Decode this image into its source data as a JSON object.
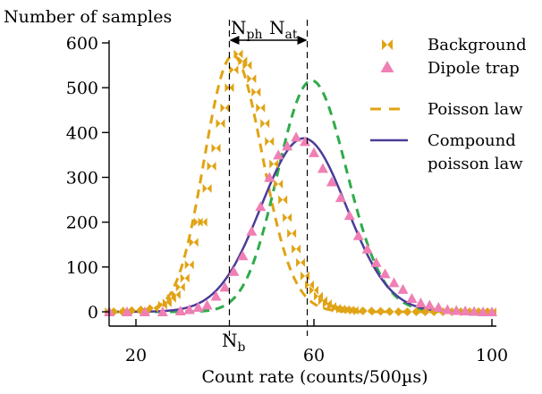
{
  "chart_data": {
    "type": "scatter",
    "ylabel": "Number of samples",
    "xlabel": "Count rate (counts/500µs)",
    "xlim": [
      13,
      101
    ],
    "ylim": [
      -15,
      620
    ],
    "x_ticks": [
      20,
      60,
      100
    ],
    "y_ticks": [
      0,
      100,
      200,
      300,
      400,
      500,
      600
    ],
    "x_tick_labels": [
      "20",
      "60",
      "100"
    ],
    "y_tick_labels": [
      "0",
      "100",
      "200",
      "300",
      "400",
      "500",
      "600"
    ],
    "annotations": {
      "n_ph": {
        "main": "N",
        "sub": "ph"
      },
      "n_at": {
        "main": "N",
        "sub": "at"
      },
      "n_b": {
        "main": "N",
        "sub": "b"
      },
      "n_b_x": 41,
      "mean_x": 58.5
    },
    "legend": {
      "position": "top-right",
      "items": [
        {
          "key": "background",
          "label": "Background",
          "marker": "bowtie",
          "color": "#e0a314"
        },
        {
          "key": "dipole",
          "label": "Dipole trap",
          "marker": "triangle",
          "color": "#ef7fb4"
        },
        {
          "key": "poisson",
          "label": "Poisson law",
          "marker": "dash",
          "color": "#e0a314"
        },
        {
          "key": "compound",
          "label_lines": [
            "Compound",
            "poisson law"
          ],
          "marker": "line",
          "color": "#4b3c98"
        }
      ]
    },
    "series": [
      {
        "name": "Background",
        "marker": "bowtie",
        "color": "#e0a314",
        "x": [
          14,
          16,
          18,
          20,
          22,
          24,
          26,
          27,
          28,
          29,
          30,
          31,
          32,
          33,
          34,
          35,
          36,
          37,
          38,
          39,
          40,
          41,
          42,
          43,
          44,
          45,
          46,
          47,
          48,
          49,
          50,
          51,
          52,
          53,
          54,
          55,
          56,
          57,
          58,
          59,
          60,
          61,
          62,
          63,
          64,
          65,
          66,
          67,
          68,
          69,
          70,
          72,
          74,
          76,
          78,
          80,
          82,
          84,
          86,
          88,
          90,
          92,
          94,
          96,
          98,
          100
        ],
        "y": [
          0,
          0,
          2,
          3,
          5,
          8,
          15,
          20,
          30,
          38,
          55,
          75,
          105,
          155,
          200,
          200,
          275,
          325,
          365,
          420,
          455,
          500,
          540,
          575,
          560,
          550,
          520,
          490,
          455,
          420,
          380,
          330,
          285,
          250,
          210,
          175,
          140,
          110,
          80,
          60,
          48,
          35,
          25,
          18,
          12,
          8,
          6,
          5,
          4,
          3,
          2,
          2,
          1,
          1,
          0,
          0,
          0,
          0,
          0,
          0,
          0,
          0,
          0,
          0,
          0,
          0
        ]
      },
      {
        "name": "Dipole trap",
        "marker": "triangle",
        "color": "#ef7fb4",
        "x": [
          14,
          18,
          22,
          26,
          30,
          32,
          34,
          36,
          38,
          40,
          42,
          44,
          46,
          48,
          50,
          52,
          54,
          56,
          58,
          60,
          62,
          64,
          66,
          68,
          70,
          72,
          74,
          76,
          78,
          80,
          82,
          84,
          86,
          88,
          90,
          92,
          94,
          96,
          98,
          100
        ],
        "y": [
          0,
          0,
          0,
          0,
          2,
          5,
          10,
          15,
          35,
          55,
          90,
          125,
          180,
          235,
          300,
          350,
          370,
          390,
          380,
          355,
          320,
          290,
          255,
          215,
          170,
          140,
          110,
          85,
          65,
          50,
          30,
          20,
          15,
          10,
          5,
          3,
          2,
          1,
          0,
          0
        ]
      },
      {
        "name": "Poisson law",
        "type": "curve",
        "color": "#e0a314",
        "style": "dashed",
        "mean": 42.3,
        "peak": 570
      },
      {
        "name": "Poisson law (dipole)",
        "type": "curve",
        "color": "#2eab4a",
        "style": "dashed",
        "mean": 60.0,
        "peak": 515
      },
      {
        "name": "Compound poisson law",
        "type": "curve",
        "color": "#4b3c98",
        "style": "solid",
        "mean": 57.7,
        "sigma": 9.6,
        "peak": 387
      }
    ]
  }
}
